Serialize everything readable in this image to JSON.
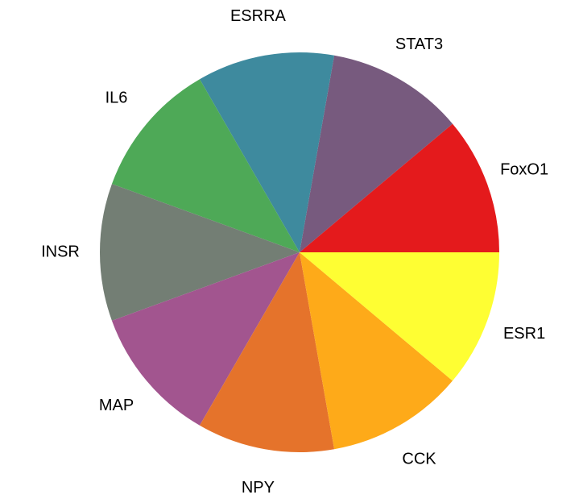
{
  "chart_data": {
    "type": "pie",
    "categories": [
      "FoxO1",
      "STAT3",
      "ESRRA",
      "IL6",
      "INSR",
      "MAP",
      "NPY",
      "CCK",
      "ESR1"
    ],
    "values": [
      11.1,
      11.1,
      11.1,
      11.1,
      11.1,
      11.1,
      11.1,
      11.1,
      11.1
    ],
    "colors": [
      "#e41a1c",
      "#775a7e",
      "#3e8a9e",
      "#4ea957",
      "#737e74",
      "#a2558f",
      "#e5732b",
      "#feaa19",
      "#fefe33"
    ]
  }
}
